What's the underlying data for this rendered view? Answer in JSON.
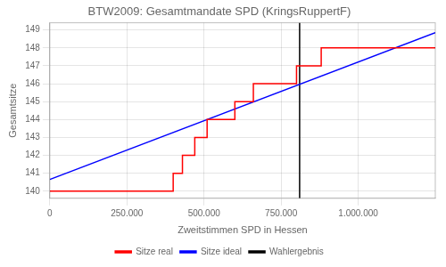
{
  "chart_data": {
    "type": "line",
    "title": "BTW2009: Gesamtmandate SPD (KringsRuppertF)",
    "x_label": "Zweitstimmen SPD in Hessen",
    "y_label": "Gesamtsitze",
    "xlim": [
      0,
      1250000
    ],
    "ylim": [
      139.6,
      149.4
    ],
    "yticks": [
      140,
      141,
      142,
      143,
      144,
      145,
      146,
      147,
      148,
      149
    ],
    "xticks": [
      0,
      {
        "value": 250000,
        "label": "250.000"
      },
      {
        "value": 500000,
        "label": "500.000"
      },
      {
        "value": 750000,
        "label": "750.000"
      },
      {
        "value": 1000000,
        "label": "1.000.000"
      }
    ],
    "grid": true,
    "legend": "bottom",
    "series": [
      {
        "name": "Sitze real",
        "color": "red",
        "x": [
          0,
          360000,
          360000,
          400000,
          400000,
          430000,
          430000,
          470000,
          470000,
          510000,
          510000,
          560000,
          560000,
          600000,
          600000,
          660000,
          660000,
          800000,
          800000,
          880000,
          880000,
          1050000,
          1250000
        ],
        "values": [
          140,
          140,
          140,
          140,
          141,
          141,
          142,
          142,
          143,
          143,
          144,
          144,
          144,
          144,
          145,
          145,
          146,
          146,
          147,
          147,
          148,
          148,
          148
        ]
      },
      {
        "name": "Sitze ideal",
        "color": "blue",
        "x": [
          0,
          1250000
        ],
        "values": [
          140.65,
          148.85
        ]
      },
      {
        "name": "Wahlergebnis",
        "color": "black",
        "x": [
          810000,
          810000
        ],
        "values": [
          139.6,
          149.4
        ]
      }
    ]
  }
}
